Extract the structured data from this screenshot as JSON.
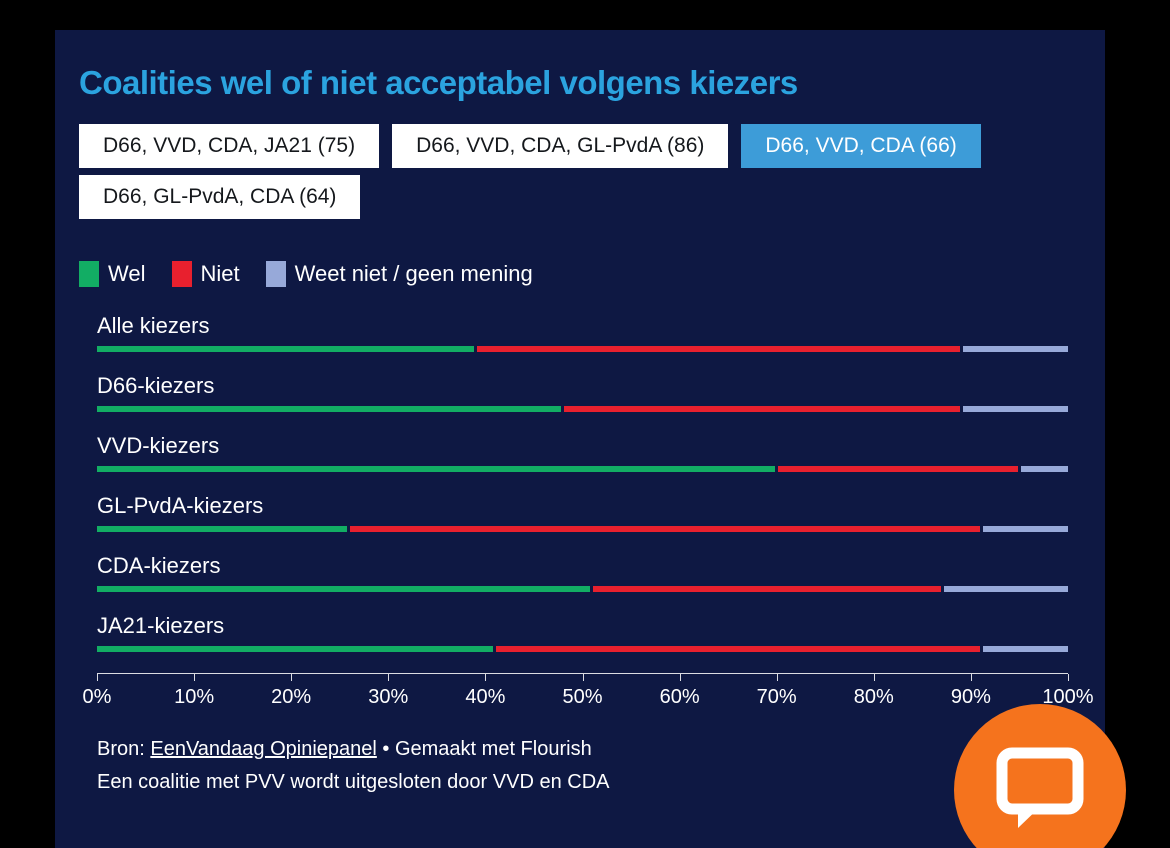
{
  "header": {
    "title": "Coalities wel of niet acceptabel volgens kiezers"
  },
  "tabs": {
    "items": [
      {
        "label": "D66, VVD, CDA, JA21 (75)",
        "active": false
      },
      {
        "label": "D66, VVD, CDA, GL-PvdA (86)",
        "active": false
      },
      {
        "label": "D66, VVD, CDA (66)",
        "active": true
      },
      {
        "label": "D66, GL-PvdA, CDA (64)",
        "active": false
      }
    ]
  },
  "legend": [
    {
      "label": "Wel",
      "color": "#12ad64"
    },
    {
      "label": "Niet",
      "color": "#e8202e"
    },
    {
      "label": "Weet niet / geen mening",
      "color": "#97a9d9"
    }
  ],
  "chart_data": {
    "type": "bar",
    "orientation": "horizontal",
    "stacked": true,
    "title": "Coalities wel of niet acceptabel volgens kiezers",
    "categories": [
      "Alle kiezers",
      "D66-kiezers",
      "VVD-kiezers",
      "GL-PvdA-kiezers",
      "CDA-kiezers",
      "JA21-kiezers"
    ],
    "series": [
      {
        "name": "Wel",
        "color": "#12ad64",
        "values": [
          39,
          48,
          70,
          26,
          51,
          41
        ]
      },
      {
        "name": "Niet",
        "color": "#e8202e",
        "values": [
          50,
          41,
          25,
          65,
          36,
          50
        ]
      },
      {
        "name": "Weet niet / geen mening",
        "color": "#97a9d9",
        "values": [
          11,
          11,
          5,
          9,
          13,
          9
        ]
      }
    ],
    "x_ticks": [
      "0%",
      "10%",
      "20%",
      "30%",
      "40%",
      "50%",
      "60%",
      "70%",
      "80%",
      "90%",
      "100%"
    ],
    "xlim": [
      0,
      100
    ],
    "legend_position": "top",
    "grid": false
  },
  "footer": {
    "source_prefix": "Bron: ",
    "source_link": "EenVandaag Opiniepanel",
    "source_suffix": " • Gemaakt met Flourish",
    "note": "Een coalitie met PVV wordt uitgesloten door VVD en CDA"
  },
  "colors": {
    "background": "#000000",
    "panel": "#0e1843",
    "title": "#2ba3df",
    "active_tab": "#3d9cd8",
    "chat_button": "#f5731d"
  }
}
